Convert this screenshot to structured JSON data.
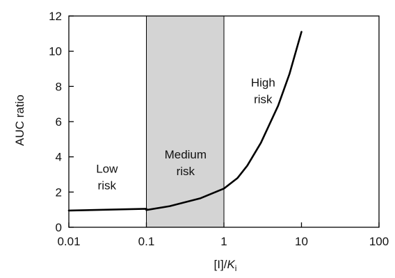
{
  "chart_data": {
    "type": "line",
    "title": "",
    "xlabel": {
      "prefix": "[I]/",
      "K": "K",
      "sub": "i"
    },
    "ylabel": "AUC ratio",
    "xscale": "log",
    "xlim": [
      0.01,
      100
    ],
    "ylim": [
      0,
      12
    ],
    "x_ticks": [
      0.01,
      0.1,
      1,
      10,
      100
    ],
    "x_tick_labels": [
      "0.01",
      "0.1",
      "1",
      "10",
      "100"
    ],
    "y_ticks": [
      0,
      2,
      4,
      6,
      8,
      10,
      12
    ],
    "y_tick_labels": [
      "0",
      "2",
      "4",
      "6",
      "8",
      "10",
      "12"
    ],
    "grid": false,
    "legend": "none",
    "shaded_region": {
      "x_range": [
        0.1,
        1
      ],
      "color": "#d4d4d4"
    },
    "boundary_lines_x": [
      0.1,
      1
    ],
    "region_labels": [
      {
        "id": "low",
        "lines": [
          "Low",
          "risk"
        ],
        "x": 0.031,
        "y": 3.1
      },
      {
        "id": "medium",
        "lines": [
          "Medium",
          "risk"
        ],
        "x": 0.32,
        "y": 3.9
      },
      {
        "id": "high",
        "lines": [
          "High",
          "risk"
        ],
        "x": 3.2,
        "y": 8.0
      }
    ],
    "series": [
      {
        "points": [
          {
            "x": 0.01,
            "y": 0.95
          },
          {
            "x": 0.02,
            "y": 0.98
          },
          {
            "x": 0.05,
            "y": 1.02
          },
          {
            "x": 0.1,
            "y": 1.05
          },
          {
            "x": 0.1,
            "y": 0.98
          },
          {
            "x": 0.2,
            "y": 1.2
          },
          {
            "x": 0.5,
            "y": 1.65
          },
          {
            "x": 1,
            "y": 2.2
          },
          {
            "x": 1.5,
            "y": 2.8
          },
          {
            "x": 2,
            "y": 3.5
          },
          {
            "x": 3,
            "y": 4.8
          },
          {
            "x": 5,
            "y": 6.9
          },
          {
            "x": 7,
            "y": 8.7
          },
          {
            "x": 10,
            "y": 11.1
          }
        ]
      }
    ],
    "colors": {
      "line": "#000000",
      "axis": "#000000"
    }
  }
}
